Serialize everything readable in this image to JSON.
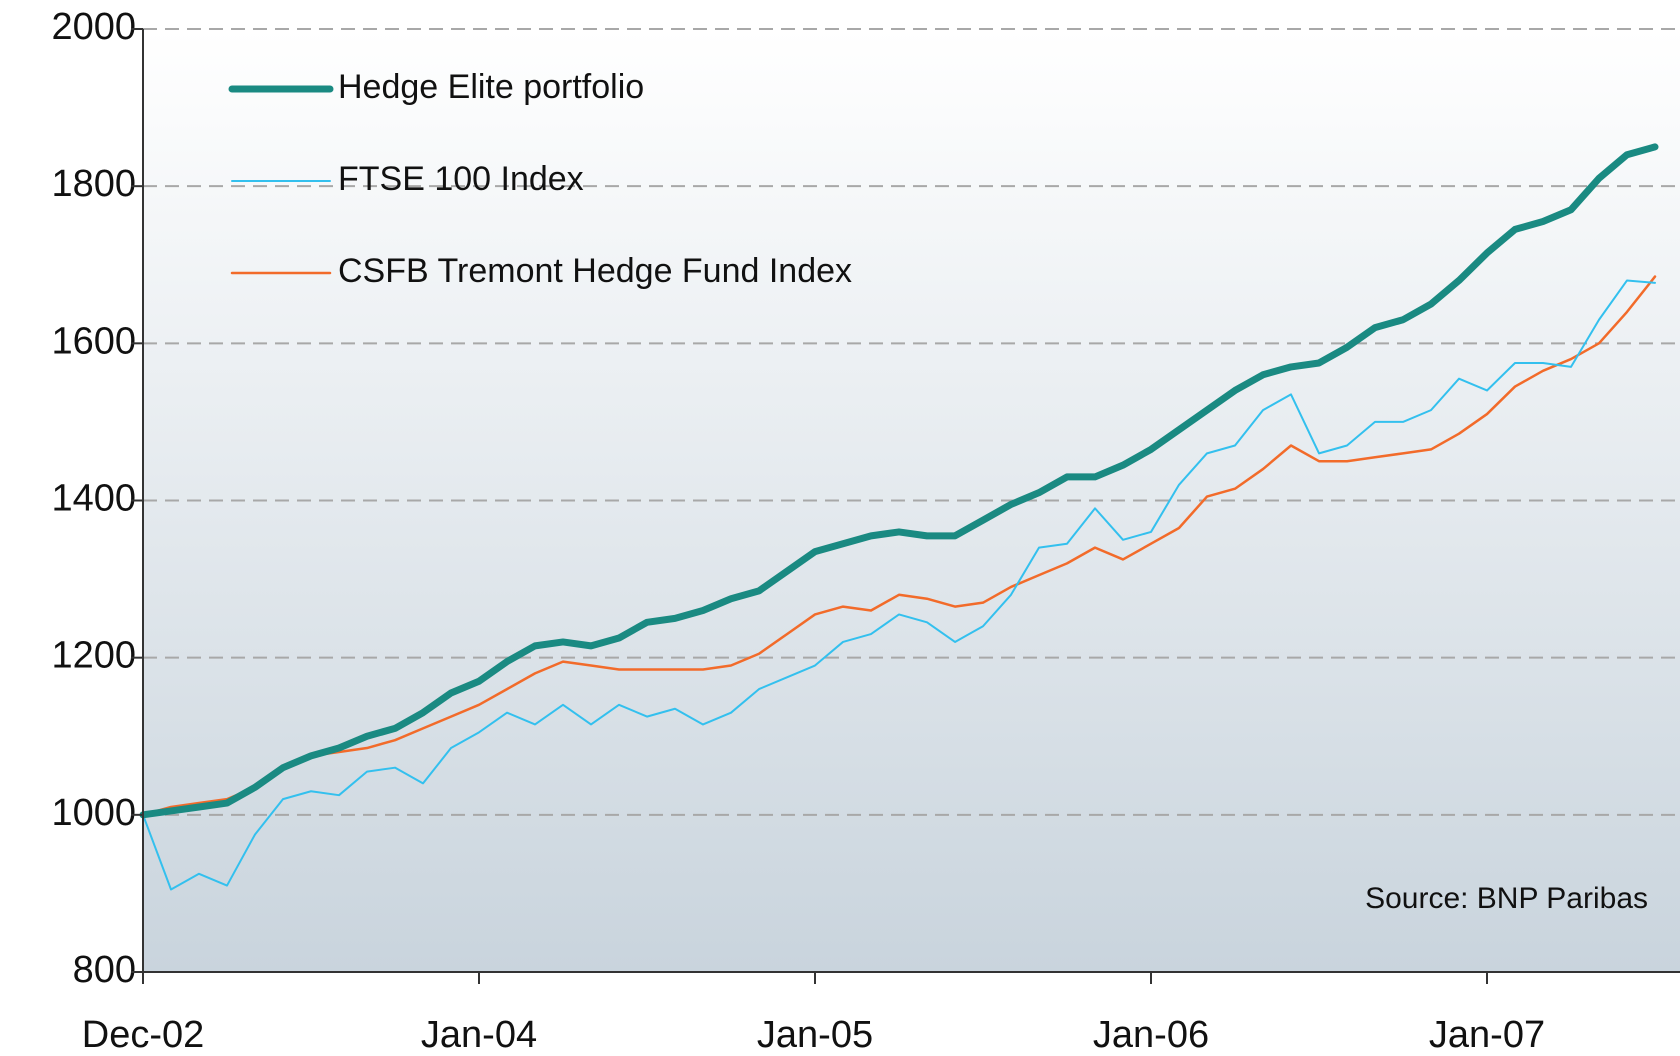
{
  "chart_data": {
    "type": "line",
    "categories": [
      "Dec-02",
      null,
      null,
      null,
      null,
      null,
      null,
      null,
      null,
      null,
      null,
      null,
      "Jan-04",
      null,
      null,
      null,
      null,
      null,
      null,
      null,
      null,
      null,
      null,
      null,
      "Jan-05",
      null,
      null,
      null,
      null,
      null,
      null,
      null,
      null,
      null,
      null,
      null,
      "Jan-06",
      null,
      null,
      null,
      null,
      null,
      null,
      null,
      null,
      null,
      null,
      null,
      "Jan-07",
      null,
      null,
      null,
      null,
      null,
      null
    ],
    "series": [
      {
        "name": "Hedge Elite portfolio",
        "color": "#1a8a82",
        "width": 7,
        "values": [
          1000,
          1005,
          1010,
          1015,
          1035,
          1060,
          1075,
          1085,
          1100,
          1110,
          1130,
          1155,
          1170,
          1195,
          1215,
          1220,
          1215,
          1225,
          1245,
          1250,
          1260,
          1275,
          1285,
          1310,
          1335,
          1345,
          1355,
          1360,
          1355,
          1355,
          1375,
          1395,
          1410,
          1430,
          1430,
          1445,
          1465,
          1490,
          1515,
          1540,
          1560,
          1570,
          1575,
          1595,
          1620,
          1630,
          1650,
          1680,
          1715,
          1745,
          1755,
          1770,
          1810,
          1840,
          1850
        ]
      },
      {
        "name": "FTSE 100 Index",
        "color": "#33c0ee",
        "width": 2,
        "values": [
          1000,
          905,
          925,
          910,
          975,
          1020,
          1030,
          1025,
          1055,
          1060,
          1040,
          1085,
          1105,
          1130,
          1115,
          1140,
          1115,
          1140,
          1125,
          1135,
          1115,
          1130,
          1160,
          1175,
          1190,
          1220,
          1230,
          1255,
          1245,
          1220,
          1240,
          1280,
          1340,
          1345,
          1390,
          1350,
          1360,
          1420,
          1460,
          1470,
          1515,
          1535,
          1460,
          1470,
          1500,
          1500,
          1515,
          1555,
          1540,
          1575,
          1575,
          1570,
          1630,
          1680,
          1677
        ]
      },
      {
        "name": "CSFB Tremont Hedge Fund Index",
        "color": "#f26b2a",
        "width": 2.5,
        "values": [
          1000,
          1010,
          1015,
          1020,
          1035,
          1060,
          1075,
          1080,
          1085,
          1095,
          1110,
          1125,
          1140,
          1160,
          1180,
          1195,
          1190,
          1185,
          1185,
          1185,
          1185,
          1190,
          1205,
          1230,
          1255,
          1265,
          1260,
          1280,
          1275,
          1265,
          1270,
          1290,
          1305,
          1320,
          1340,
          1325,
          1345,
          1365,
          1405,
          1415,
          1440,
          1470,
          1450,
          1450,
          1455,
          1460,
          1465,
          1485,
          1510,
          1545,
          1565,
          1580,
          1600,
          1640,
          1685
        ]
      }
    ],
    "ylim": [
      800,
      2000
    ],
    "yticks": [
      800,
      1000,
      1200,
      1400,
      1600,
      1800,
      2000
    ],
    "grid": true,
    "legend": "top-left",
    "annotation": "Source: BNP Paribas"
  }
}
